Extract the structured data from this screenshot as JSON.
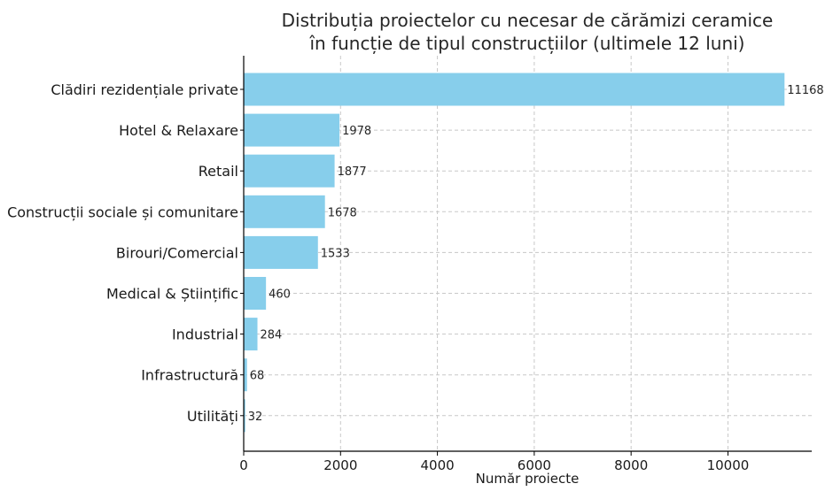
{
  "chart_data": {
    "type": "bar",
    "orientation": "horizontal",
    "title": "Distribuția proiectelor cu necesar de cărămizi ceramice",
    "title_line2": "în funcție de tipul construcțiilor (ultimele 12 luni)",
    "xlabel": "Număr proiecte",
    "ylabel": "",
    "categories": [
      "Clădiri rezidențiale private",
      "Hotel & Relaxare",
      "Retail",
      "Construcții sociale și comunitare",
      "Birouri/Comercial",
      "Medical & Științific",
      "Industrial",
      "Infrastructură",
      "Utilități"
    ],
    "values": [
      11168,
      1978,
      1877,
      1678,
      1533,
      460,
      284,
      68,
      32
    ],
    "xlim": [
      0,
      11730
    ],
    "xticks": [
      0,
      2000,
      4000,
      6000,
      8000,
      10000
    ],
    "xtick_labels": [
      "0",
      "2000",
      "4000",
      "6000",
      "8000",
      "10000"
    ],
    "grid": true,
    "bar_color": "#87ceeb",
    "show_data_labels": true
  }
}
